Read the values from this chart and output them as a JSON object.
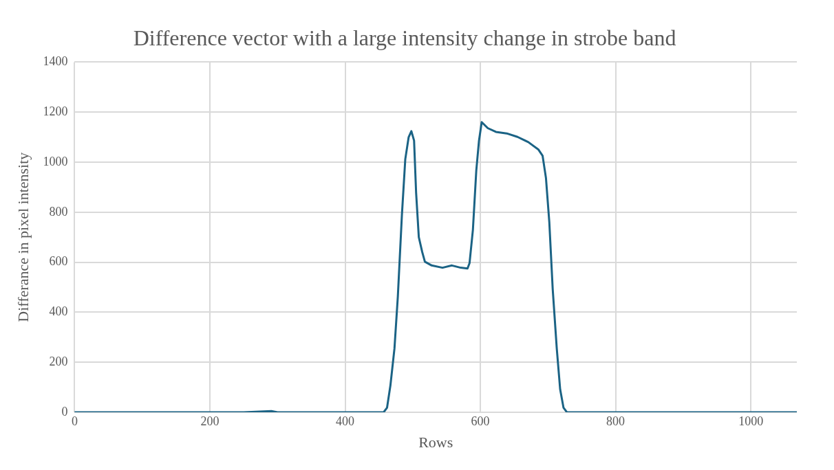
{
  "chart_data": {
    "type": "line",
    "title": "Difference vector with a large intensity change in strobe band",
    "xlabel": "Rows",
    "ylabel": "Differance in pixel intensity",
    "x": [
      0,
      50,
      100,
      150,
      200,
      250,
      291,
      300,
      350,
      400,
      457,
      462,
      467,
      473,
      478,
      484,
      489,
      494,
      498,
      502,
      505,
      509,
      514,
      518,
      528,
      544,
      558,
      571,
      581,
      584,
      589,
      594,
      598,
      602,
      611,
      623,
      639,
      655,
      671,
      686,
      692,
      697,
      702,
      707,
      713,
      718,
      723,
      728,
      800,
      900,
      1000,
      1068
    ],
    "series": [
      {
        "color": "#1b6385",
        "values": [
          0,
          0,
          0,
          0,
          0,
          0,
          5,
          0,
          0,
          0,
          0,
          18,
          107,
          255,
          463,
          789,
          1012,
          1100,
          1124,
          1086,
          878,
          700,
          641,
          602,
          587,
          578,
          587,
          578,
          575,
          596,
          730,
          967,
          1086,
          1160,
          1136,
          1121,
          1115,
          1101,
          1080,
          1050,
          1026,
          937,
          759,
          492,
          255,
          92,
          18,
          0,
          0,
          0,
          0,
          0
        ]
      }
    ],
    "xlim": [
      0,
      1068
    ],
    "xticks": [
      0,
      200,
      400,
      600,
      800,
      1000
    ],
    "ylim": [
      0,
      1400
    ],
    "yticks": [
      0,
      200,
      400,
      600,
      800,
      1000,
      1200,
      1400
    ],
    "grid": true,
    "legend": false,
    "marker": "none",
    "line_style": "solid"
  }
}
